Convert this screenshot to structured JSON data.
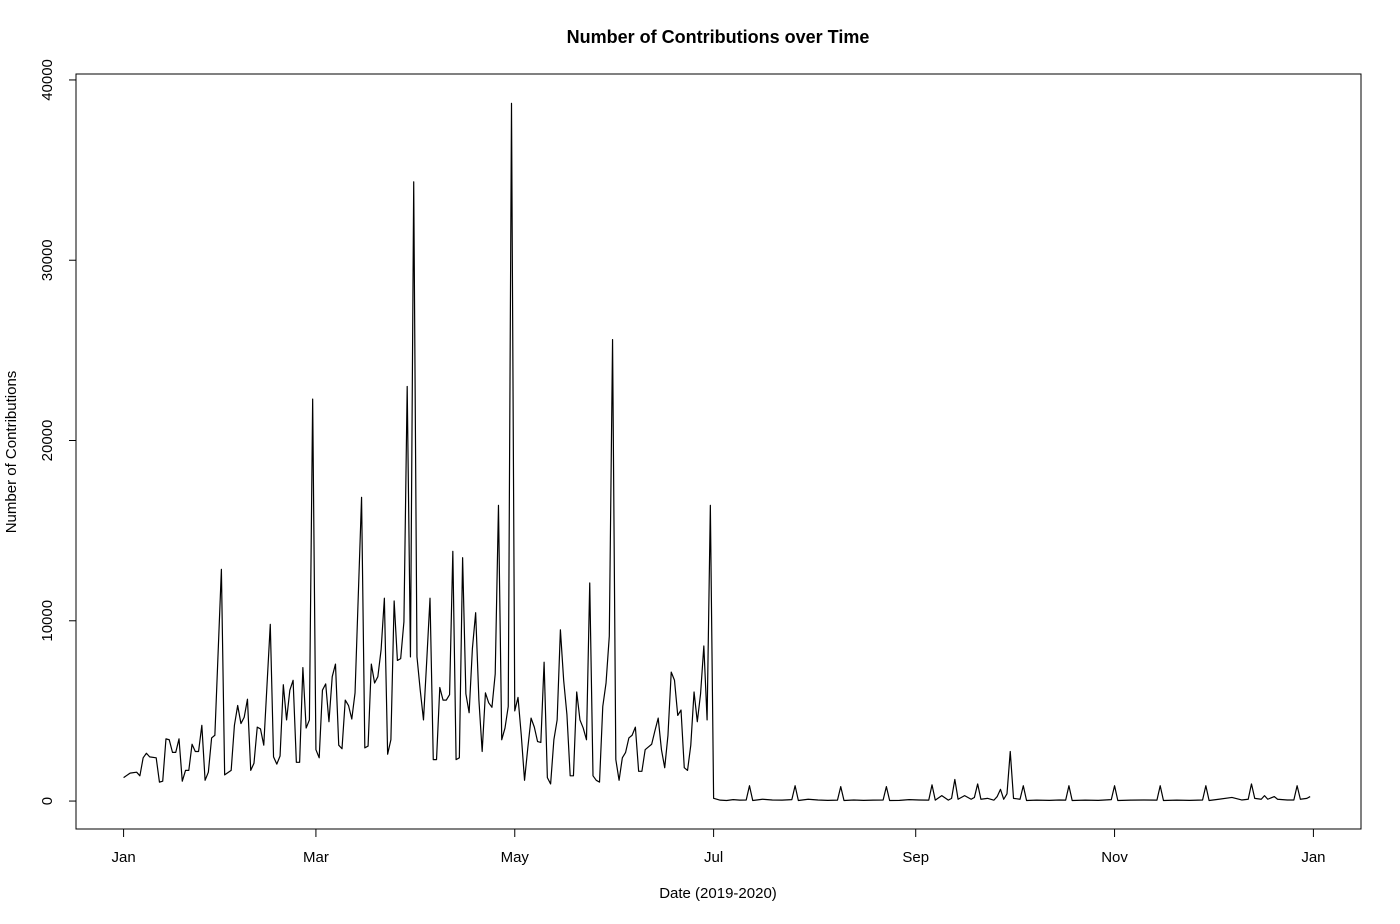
{
  "chart_data": {
    "type": "line",
    "title": "Number of Contributions over Time",
    "x_label": "Date (2019-2020)",
    "y_label": "Number of Contributions",
    "color": "#000000",
    "x": [
      0,
      2,
      4,
      5,
      6,
      7,
      8,
      10,
      11,
      12,
      13,
      14,
      15,
      16,
      17,
      18,
      19,
      20,
      21,
      22,
      23,
      24,
      25,
      26,
      27,
      28,
      30,
      31,
      33,
      34,
      35,
      36,
      37,
      38,
      39,
      40,
      41,
      42,
      43,
      45,
      46,
      47,
      48,
      49,
      50,
      51,
      52,
      53,
      54,
      55,
      56,
      57,
      58,
      59,
      60,
      61,
      62,
      63,
      64,
      65,
      66,
      67,
      68,
      69,
      70,
      71,
      73,
      74,
      75,
      76,
      77,
      78,
      79,
      80,
      81,
      82,
      83,
      84,
      85,
      86,
      87,
      88,
      89,
      90,
      91,
      92,
      93,
      94,
      95,
      96,
      97,
      98,
      99,
      100,
      101,
      102,
      103,
      104,
      105,
      106,
      107,
      108,
      109,
      110,
      111,
      112,
      113,
      114,
      115,
      116,
      117,
      118,
      119,
      120,
      121,
      122,
      123,
      124,
      125,
      126,
      127,
      128,
      129,
      130,
      131,
      132,
      133,
      134,
      135,
      136,
      137,
      138,
      139,
      140,
      141,
      142,
      143,
      144,
      145,
      146,
      147,
      148,
      149,
      150,
      151,
      152,
      153,
      154,
      155,
      156,
      157,
      158,
      159,
      160,
      161,
      162,
      163,
      164,
      165,
      166,
      167,
      168,
      169,
      170,
      171,
      172,
      173,
      174,
      175,
      176,
      177,
      178,
      179,
      180,
      181,
      183,
      185,
      187,
      189,
      191,
      192,
      193,
      196,
      199,
      202,
      205,
      206,
      207,
      210,
      213,
      216,
      219,
      220,
      221,
      224,
      227,
      230,
      233,
      234,
      235,
      238,
      241,
      244,
      247,
      248,
      249,
      251,
      253,
      254,
      255,
      256,
      258,
      260,
      261,
      262,
      263,
      265,
      267,
      268,
      269,
      270,
      271,
      272,
      273,
      275,
      276,
      277,
      280,
      284,
      287,
      289,
      290,
      291,
      295,
      299,
      303,
      304,
      305,
      309,
      313,
      317,
      318,
      319,
      323,
      327,
      331,
      332,
      333,
      336,
      340,
      343,
      345,
      346,
      347,
      349,
      350,
      351,
      353,
      354,
      357,
      359,
      360,
      361,
      363,
      364
    ],
    "values": [
      1300,
      1550,
      1600,
      1400,
      2400,
      2650,
      2450,
      2400,
      1050,
      1100,
      3450,
      3400,
      2700,
      2700,
      3450,
      1100,
      1700,
      1700,
      3150,
      2750,
      2750,
      4200,
      1150,
      1600,
      3500,
      3650,
      12850,
      1450,
      1700,
      4200,
      5300,
      4300,
      4650,
      5650,
      1700,
      2100,
      4100,
      4000,
      3100,
      9800,
      2450,
      2050,
      2500,
      6450,
      4500,
      6150,
      6700,
      2150,
      2150,
      7400,
      4050,
      4500,
      22300,
      2850,
      2400,
      6150,
      6500,
      4400,
      6900,
      7600,
      3100,
      2900,
      5600,
      5300,
      4550,
      6000,
      16850,
      2950,
      3050,
      7600,
      6550,
      6900,
      8400,
      11250,
      2600,
      3400,
      11100,
      7800,
      7900,
      9950,
      23000,
      8000,
      34350,
      8000,
      6150,
      4500,
      7800,
      11250,
      2300,
      2300,
      6300,
      5600,
      5600,
      5900,
      13850,
      2300,
      2400,
      13500,
      5950,
      4900,
      8450,
      10450,
      5600,
      2750,
      6000,
      5450,
      5200,
      7050,
      16400,
      3400,
      4050,
      5250,
      38700,
      5000,
      5750,
      3650,
      1150,
      2950,
      4600,
      4100,
      3300,
      3250,
      7700,
      1300,
      950,
      3400,
      4500,
      9500,
      6700,
      4800,
      1400,
      1400,
      6050,
      4500,
      4050,
      3400,
      12100,
      1400,
      1150,
      1050,
      5250,
      6550,
      9150,
      25600,
      2300,
      1150,
      2400,
      2700,
      3500,
      3650,
      4100,
      1650,
      1650,
      2850,
      3000,
      3150,
      3900,
      4600,
      2850,
      1850,
      3650,
      7150,
      6700,
      4750,
      5050,
      1850,
      1700,
      3100,
      6050,
      4400,
      5950,
      8600,
      4500,
      16400,
      150,
      50,
      30,
      80,
      50,
      60,
      850,
      30,
      100,
      60,
      50,
      80,
      850,
      30,
      100,
      60,
      40,
      50,
      800,
      30,
      60,
      40,
      50,
      60,
      800,
      30,
      40,
      80,
      60,
      50,
      900,
      50,
      300,
      50,
      150,
      1200,
      100,
      300,
      100,
      200,
      950,
      100,
      150,
      50,
      250,
      650,
      100,
      400,
      2750,
      150,
      100,
      850,
      30,
      50,
      40,
      60,
      50,
      850,
      30,
      50,
      40,
      80,
      850,
      30,
      50,
      60,
      50,
      850,
      30,
      50,
      40,
      60,
      850,
      30,
      100,
      200,
      60,
      100,
      950,
      150,
      100,
      300,
      100,
      250,
      100,
      60,
      60,
      850,
      100,
      150,
      250
    ],
    "xlim": [
      -14.6,
      379.6
    ],
    "xticks": [
      {
        "value": 0,
        "label": "Jan"
      },
      {
        "value": 59,
        "label": "Mar"
      },
      {
        "value": 120,
        "label": "May"
      },
      {
        "value": 181,
        "label": "Jul"
      },
      {
        "value": 243,
        "label": "Sep"
      },
      {
        "value": 304,
        "label": "Nov"
      },
      {
        "value": 365,
        "label": "Jan"
      }
    ],
    "ylim": [
      -1550,
      40330
    ],
    "yticks": [
      0,
      10000,
      20000,
      30000,
      40000
    ]
  }
}
